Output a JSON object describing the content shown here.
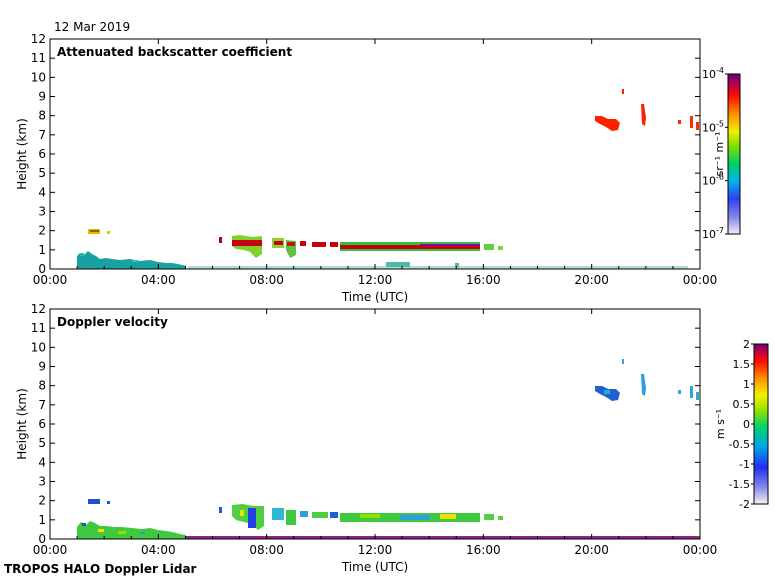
{
  "date": "12 Mar 2019",
  "footer": "TROPOS HALO Doppler Lidar",
  "chart_data": [
    {
      "type": "heatmap",
      "title": "Attenuated backscatter coefficient",
      "xlabel": "Time (UTC)",
      "ylabel": "Height (km)",
      "xlim": [
        0,
        24
      ],
      "ylim": [
        0,
        12
      ],
      "x_ticks": [
        0,
        4,
        8,
        12,
        16,
        20,
        24
      ],
      "x_tick_labels": [
        "00:00",
        "04:00",
        "08:00",
        "12:00",
        "16:00",
        "20:00",
        "00:00"
      ],
      "y_ticks": [
        0,
        1,
        2,
        3,
        4,
        5,
        6,
        7,
        8,
        9,
        10,
        11,
        12
      ],
      "y_tick_labels": [
        "0",
        "1",
        "2",
        "3",
        "4",
        "5",
        "6",
        "7",
        "8",
        "9",
        "10",
        "11",
        "12"
      ],
      "colorbar": {
        "scale": "log",
        "min": 1e-07,
        "max": 0.0001,
        "unit": "sr⁻¹ m⁻¹",
        "tick_values": [
          1e-07,
          1e-06,
          1e-05,
          0.0001
        ],
        "tick_labels": [
          {
            "base": "10",
            "exp": "-7"
          },
          {
            "base": "10",
            "exp": "-6"
          },
          {
            "base": "10",
            "exp": "-5"
          },
          {
            "base": "10",
            "exp": "-4"
          }
        ]
      },
      "regions": [
        {
          "name": "boundary-layer-aerosol",
          "t": [
            1.0,
            5.0
          ],
          "h": [
            0.0,
            0.8
          ],
          "value": "1.5e-6",
          "color": "#19a0a0"
        },
        {
          "name": "aerosol-layer-2km",
          "t": [
            1.4,
            1.9
          ],
          "h": [
            1.85,
            2.05
          ],
          "value": "3e-5",
          "color": "#c8d200"
        },
        {
          "name": "cloud-base-1.2km",
          "t": [
            6.5,
            16.5
          ],
          "h": [
            0.95,
            1.75
          ],
          "value": "5e-5",
          "color": "#c8000a"
        },
        {
          "name": "cirrus-7.5km",
          "t": [
            20.0,
            21.1
          ],
          "h": [
            7.3,
            7.9
          ],
          "value": "2e-5",
          "color": "#ff2000"
        },
        {
          "name": "cirrus-fragments",
          "t": [
            21.0,
            24.0
          ],
          "h": [
            7.2,
            9.3
          ],
          "value": "2e-5",
          "color": "#ff2000"
        }
      ]
    },
    {
      "type": "heatmap",
      "title": "Doppler velocity",
      "xlabel": "Time (UTC)",
      "ylabel": "Height (km)",
      "xlim": [
        0,
        24
      ],
      "ylim": [
        0,
        12
      ],
      "x_ticks": [
        0,
        4,
        8,
        12,
        16,
        20,
        24
      ],
      "x_tick_labels": [
        "00:00",
        "04:00",
        "08:00",
        "12:00",
        "16:00",
        "20:00",
        "00:00"
      ],
      "y_ticks": [
        0,
        1,
        2,
        3,
        4,
        5,
        6,
        7,
        8,
        9,
        10,
        11,
        12
      ],
      "y_tick_labels": [
        "0",
        "1",
        "2",
        "3",
        "4",
        "5",
        "6",
        "7",
        "8",
        "9",
        "10",
        "11",
        "12"
      ],
      "colorbar": {
        "scale": "linear",
        "min": -2,
        "max": 2,
        "unit": "m s⁻¹",
        "tick_values": [
          -2,
          -1.5,
          -1,
          -0.5,
          0,
          0.5,
          1,
          1.5,
          2
        ],
        "tick_labels": [
          "-2",
          "-1.5",
          "-1",
          "-0.5",
          "0",
          "0.5",
          "1",
          "1.5",
          "2"
        ]
      },
      "regions": [
        {
          "name": "boundary-layer-velocity",
          "t": [
            1.0,
            5.0
          ],
          "h": [
            0.0,
            0.8
          ],
          "value": "0.3",
          "color": "#40c840"
        },
        {
          "name": "aerosol-layer-2km",
          "t": [
            1.4,
            1.9
          ],
          "h": [
            1.85,
            2.05
          ],
          "value": "-1.2",
          "color": "#2050d0"
        },
        {
          "name": "cloud-base-1.2km",
          "t": [
            6.5,
            16.5
          ],
          "h": [
            0.95,
            1.75
          ],
          "value": "0.4",
          "color": "#50d040"
        },
        {
          "name": "cirrus-7.5km",
          "t": [
            20.0,
            21.1
          ],
          "h": [
            7.3,
            7.9
          ],
          "value": "-0.9",
          "color": "#2060d0"
        },
        {
          "name": "cirrus-fragments",
          "t": [
            21.0,
            24.0
          ],
          "h": [
            7.2,
            9.3
          ],
          "value": "-0.5",
          "color": "#30a8c8"
        }
      ]
    }
  ]
}
